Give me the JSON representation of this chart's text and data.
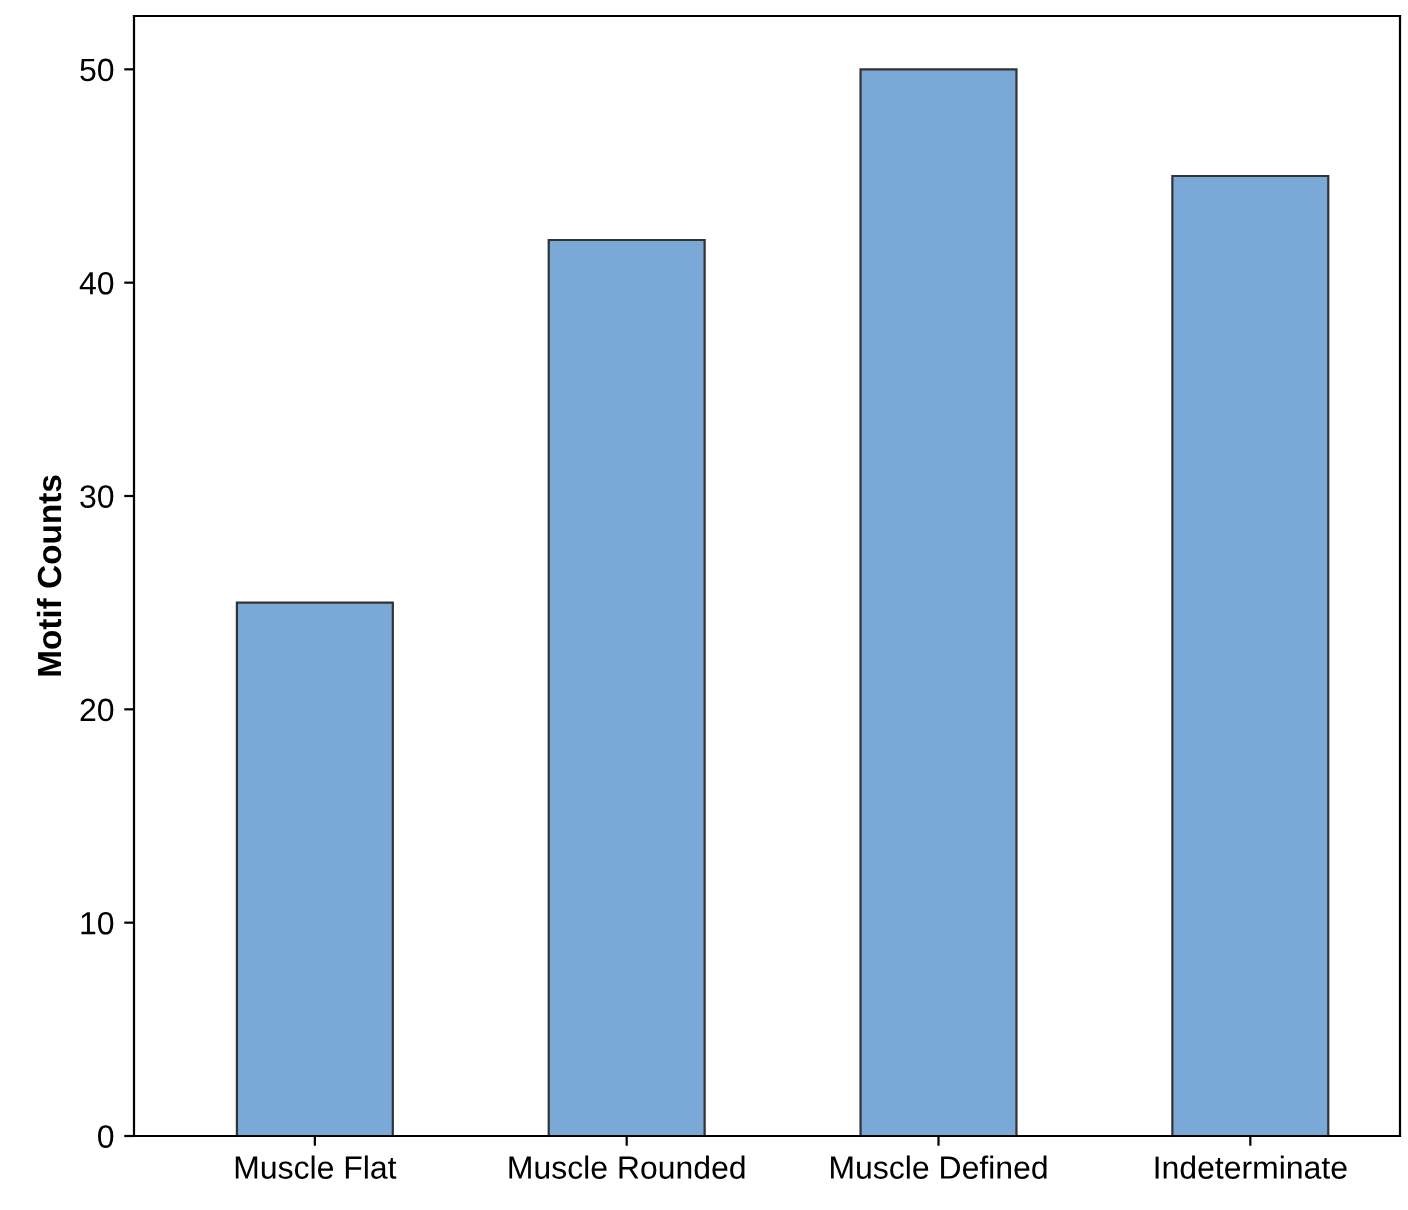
{
  "chart_data": {
    "type": "bar",
    "ylabel": "Motif Counts",
    "categories": [
      "Muscle Flat",
      "Muscle Rounded",
      "Muscle Defined",
      "Indeterminate"
    ],
    "values": [
      25,
      42,
      50,
      45
    ],
    "color": "#7ba9d7",
    "ylim": [
      0,
      52.5
    ],
    "yticks": [
      0,
      10,
      20,
      30,
      40,
      50
    ],
    "grid": false,
    "legend": false
  }
}
